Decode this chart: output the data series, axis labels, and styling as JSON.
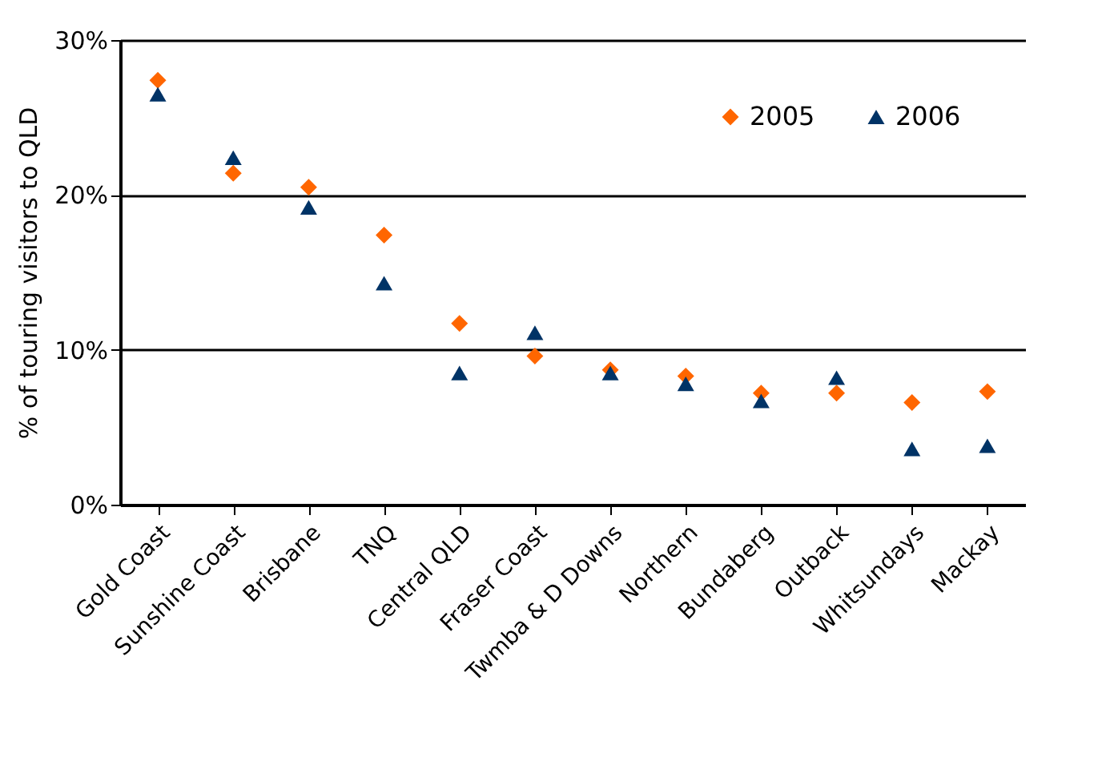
{
  "chart_data": {
    "type": "scatter",
    "ylabel": "% of touring visitors to QLD",
    "categories": [
      "Gold Coast",
      "Sunshine Coast",
      "Brisbane",
      "TNQ",
      "Central QLD",
      "Fraser Coast",
      "Twmba & D Downs",
      "Northern",
      "Bundaberg",
      "Outback",
      "Whitsundays",
      "Mackay"
    ],
    "series": [
      {
        "name": "2005",
        "color": "#ff6600",
        "marker": "diamond",
        "values": [
          27.4,
          21.4,
          20.5,
          17.4,
          11.7,
          9.6,
          8.7,
          8.3,
          7.2,
          7.2,
          6.6,
          7.3
        ]
      },
      {
        "name": "2006",
        "color": "#003366",
        "marker": "triangle",
        "values": [
          26.5,
          22.4,
          19.2,
          14.3,
          8.5,
          11.1,
          8.5,
          7.8,
          6.7,
          8.2,
          3.6,
          3.8
        ]
      }
    ],
    "ylim": [
      0,
      30
    ],
    "yticks": [
      {
        "value": 0,
        "label": "0%"
      },
      {
        "value": 10,
        "label": "10%"
      },
      {
        "value": 20,
        "label": "20%"
      },
      {
        "value": 30,
        "label": "30%"
      }
    ],
    "grid": "y",
    "legend": "top right"
  }
}
